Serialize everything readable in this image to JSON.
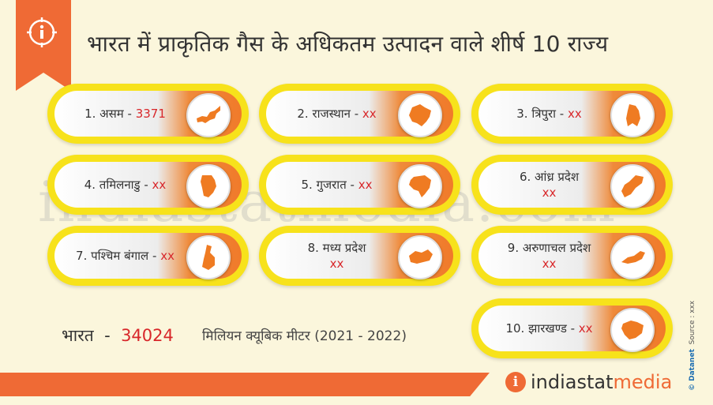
{
  "title": "भारत में प्राकृतिक गैस के अधिकतम उत्पादन वाले शीर्ष 10 राज्य",
  "colors": {
    "accent": "#ef6a35",
    "pill": "#f7e21b",
    "value": "#d8272a"
  },
  "states": [
    {
      "label": "1. असम",
      "value": "3371",
      "icon": "assam-map-icon"
    },
    {
      "label": "2. राजस्थान",
      "value": "xx",
      "icon": "rajasthan-map-icon"
    },
    {
      "label": "3. त्रिपुरा",
      "value": "xx",
      "icon": "tripura-map-icon"
    },
    {
      "label": "4. तमिलनाडु",
      "value": "xx",
      "icon": "tamil-nadu-map-icon"
    },
    {
      "label": "5. गुजरात",
      "value": "xx",
      "icon": "gujarat-map-icon"
    },
    {
      "label": "6. आंध्र प्रदेश",
      "value": "xx",
      "icon": "andhra-pradesh-map-icon"
    },
    {
      "label": "7. पश्चिम बंगाल",
      "value": "xx",
      "icon": "west-bengal-map-icon"
    },
    {
      "label": "8. मध्य प्रदेश",
      "value": "xx",
      "icon": "madhya-pradesh-map-icon"
    },
    {
      "label": "9. अरुणाचल प्रदेश",
      "value": "xx",
      "icon": "arunachal-pradesh-map-icon"
    },
    {
      "label": "10. झारखण्ड",
      "value": "xx",
      "icon": "jharkhand-map-icon"
    }
  ],
  "total": {
    "label": "भारत",
    "separator": "-",
    "value": "34024"
  },
  "unit": "मिलियन क्यूबिक मीटर (2021 - 2022)",
  "watermark": "indiastatmedia.com",
  "brand": {
    "logo": "i",
    "part1": "indiastat",
    "part2": "media"
  },
  "credit": {
    "publisher": "© Datanet",
    "source": "Source : xxx"
  }
}
